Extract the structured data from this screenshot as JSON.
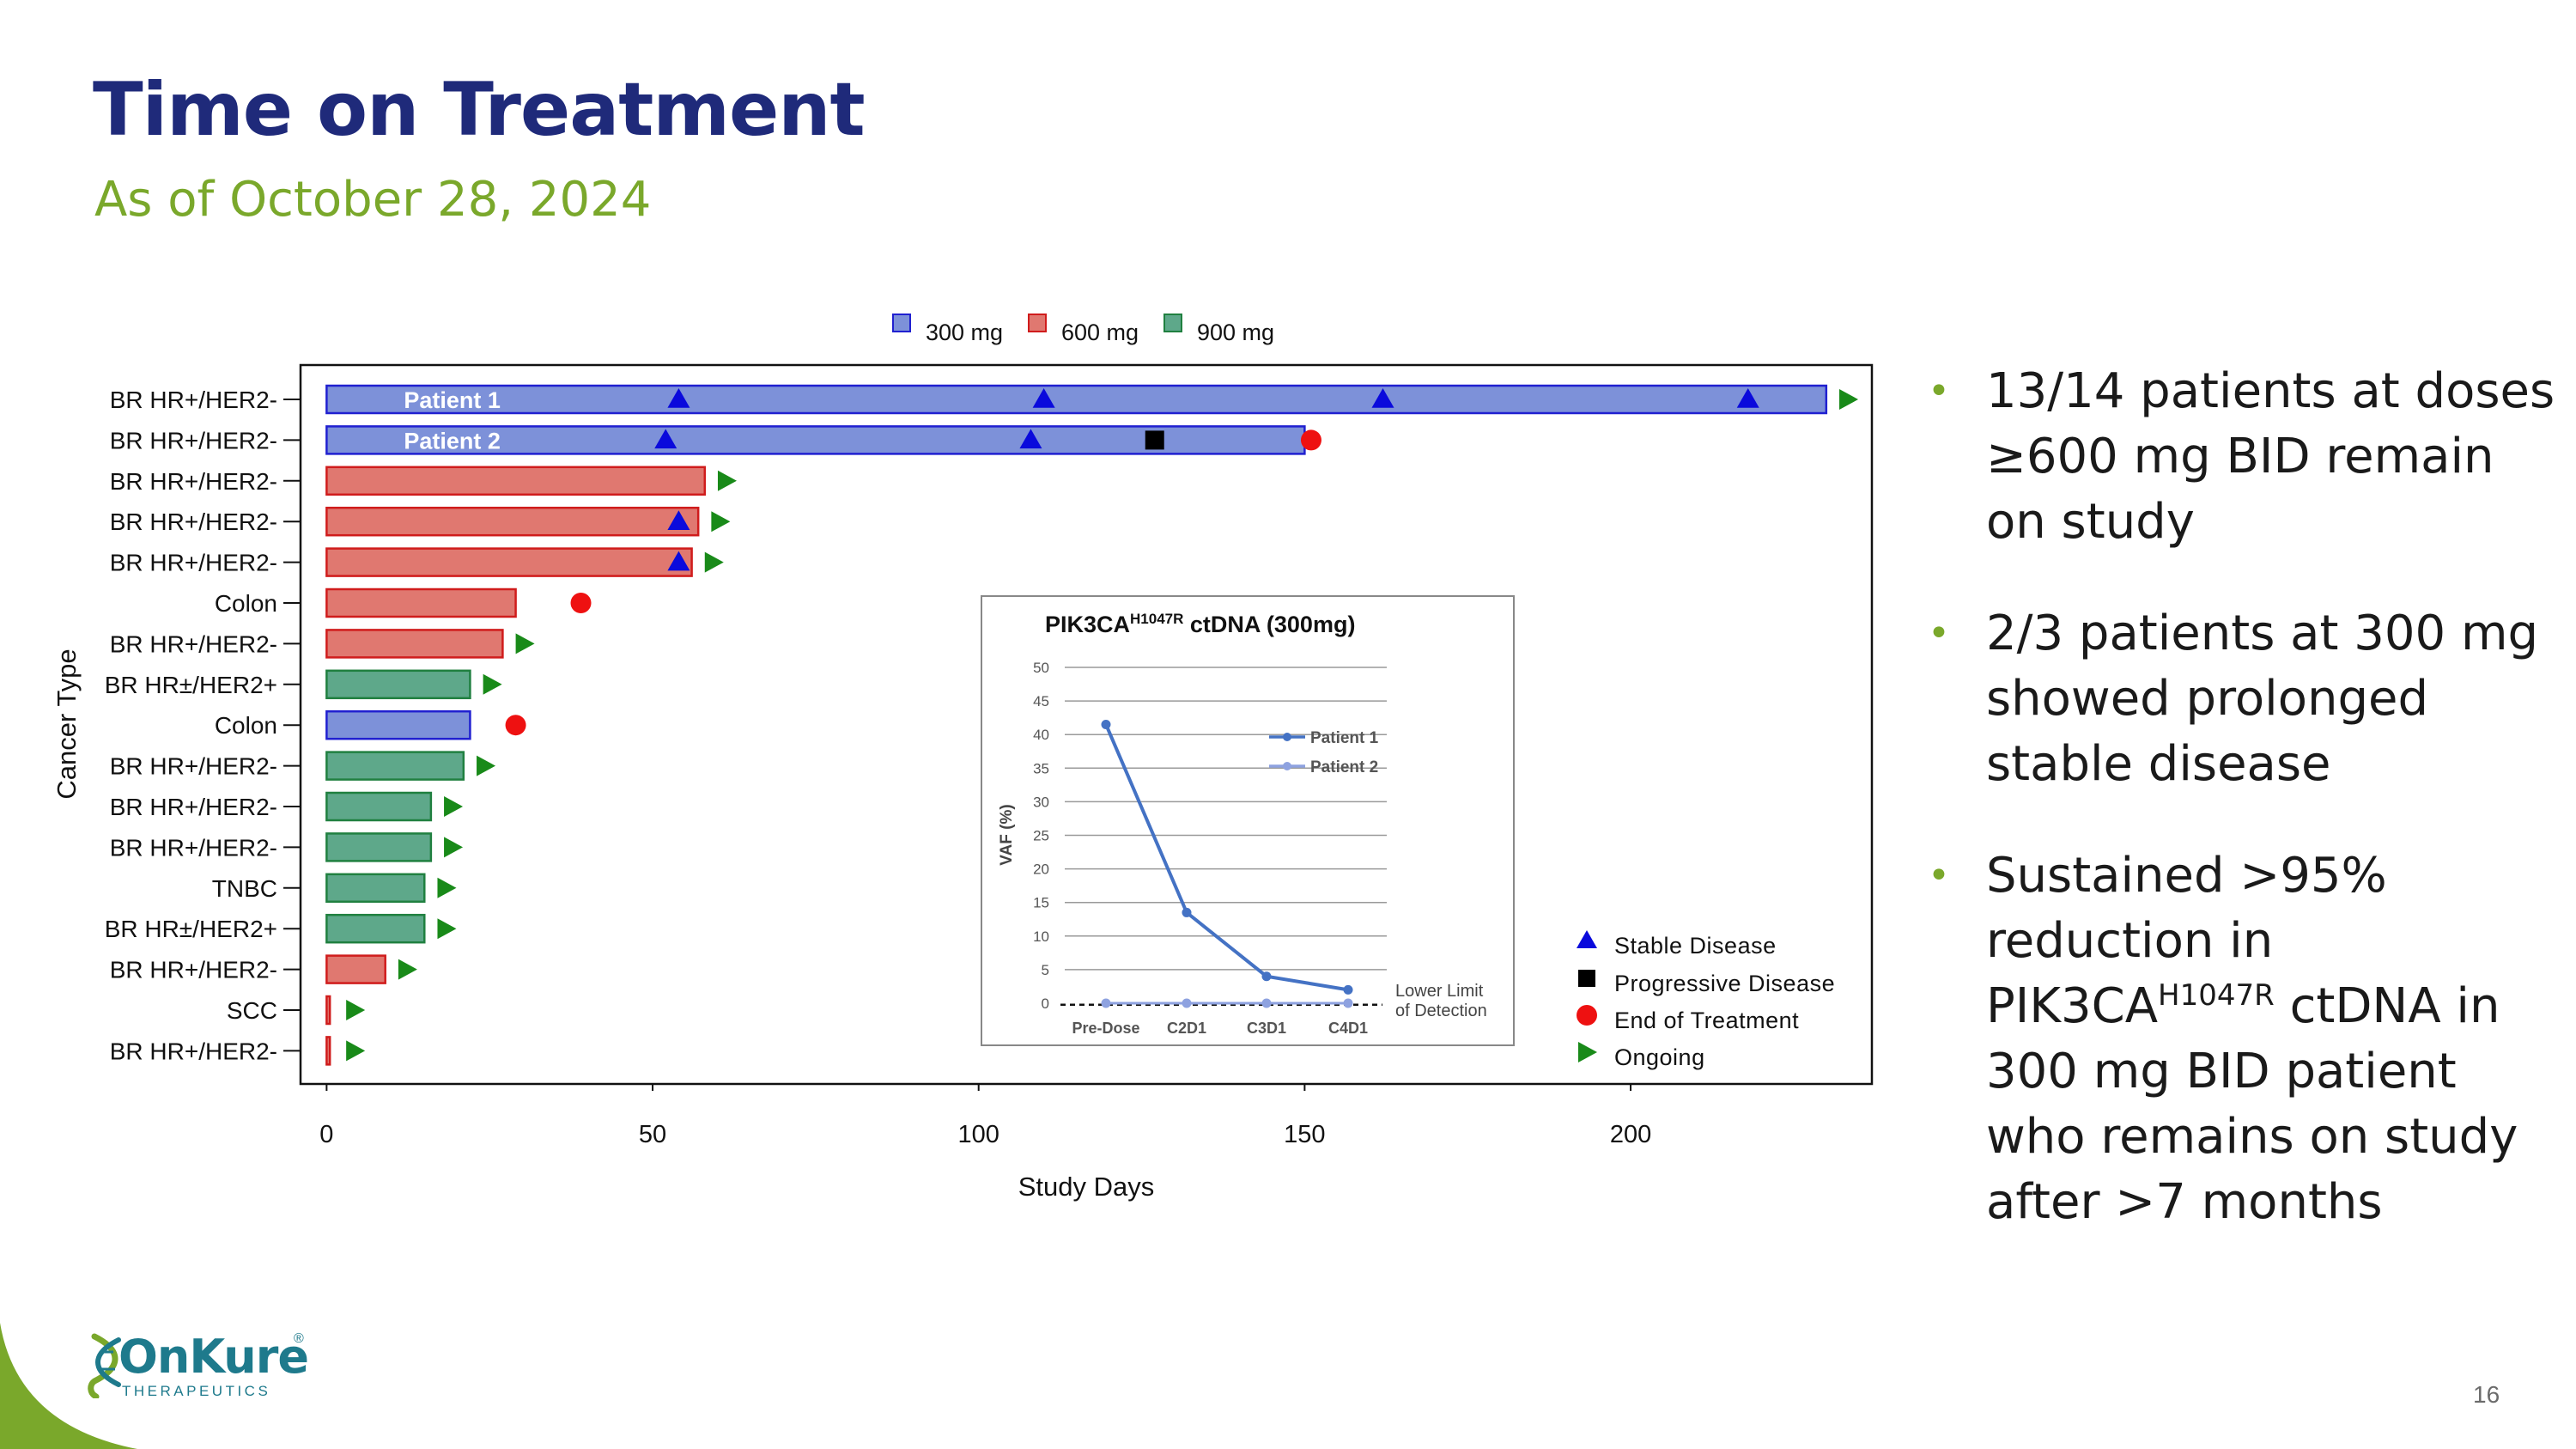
{
  "slide": {
    "title": "Time on Treatment",
    "subtitle": "As of October 28, 2024",
    "page_number": "16"
  },
  "bullets": [
    {
      "parts": [
        "13/14 patients at doses ≥600 mg BID remain on study"
      ]
    },
    {
      "parts": [
        "2/3 patients at 300 mg showed prolonged stable disease"
      ]
    },
    {
      "parts": [
        "Sustained >95% reduction in PIK3CA",
        "H1047R",
        " ctDNA in 300 mg BID patient who remains on study after >7 months"
      ]
    }
  ],
  "logo": {
    "name": "OnKure",
    "sub": "THERAPEUTICS",
    "reg": "®"
  },
  "colors": {
    "dose_300": "#7d91d9",
    "dose_300_edge": "#2020d0",
    "dose_600": "#e07870",
    "dose_600_edge": "#d01c1c",
    "dose_900": "#5ea88a",
    "dose_900_edge": "#208040",
    "stable": "#0a0adc",
    "progressive": "#000000",
    "eot": "#ee1111",
    "ongoing": "#198a19",
    "title": "#1f2a7a",
    "accent": "#7aa82b"
  },
  "chart_data": [
    {
      "type": "bar",
      "orientation": "horizontal",
      "xlabel": "Study Days",
      "ylabel": "Cancer Type",
      "xlim": [
        -4,
        237
      ],
      "xticks": [
        0,
        50,
        100,
        150,
        200
      ],
      "legend": {
        "position": "top",
        "entries": [
          {
            "label": "300 mg",
            "dose": "300"
          },
          {
            "label": "600 mg",
            "dose": "600"
          },
          {
            "label": "900 mg",
            "dose": "900"
          }
        ]
      },
      "marker_legend": {
        "position": "bottom-right",
        "entries": [
          {
            "label": "Stable Disease",
            "marker": "triangle"
          },
          {
            "label": "Progressive Disease",
            "marker": "square"
          },
          {
            "label": "End of Treatment",
            "marker": "circle"
          },
          {
            "label": "Ongoing",
            "marker": "arrow"
          }
        ]
      },
      "patients": [
        {
          "category": "BR HR+/HER2-",
          "label": "Patient 1",
          "dose": "300",
          "days": 230,
          "stable": [
            54,
            110,
            162,
            218
          ],
          "ongoing": 232
        },
        {
          "category": "BR HR+/HER2-",
          "label": "Patient 2",
          "dose": "300",
          "days": 150,
          "stable": [
            52,
            108
          ],
          "progressive": 127,
          "eot": 151
        },
        {
          "category": "BR HR+/HER2-",
          "dose": "600",
          "days": 58,
          "ongoing": 60
        },
        {
          "category": "BR HR+/HER2-",
          "dose": "600",
          "days": 57,
          "stable": [
            54
          ],
          "ongoing": 59
        },
        {
          "category": "BR HR+/HER2-",
          "dose": "600",
          "days": 56,
          "stable": [
            54
          ],
          "ongoing": 58
        },
        {
          "category": "Colon",
          "dose": "600",
          "days": 29,
          "eot": 39
        },
        {
          "category": "BR HR+/HER2-",
          "dose": "600",
          "days": 27,
          "ongoing": 29
        },
        {
          "category": "BR HR±/HER2+",
          "dose": "900",
          "days": 22,
          "ongoing": 24
        },
        {
          "category": "Colon",
          "dose": "300",
          "days": 22,
          "eot": 29
        },
        {
          "category": "BR HR+/HER2-",
          "dose": "900",
          "days": 21,
          "ongoing": 23
        },
        {
          "category": "BR HR+/HER2-",
          "dose": "900",
          "days": 16,
          "ongoing": 18
        },
        {
          "category": "BR HR+/HER2-",
          "dose": "900",
          "days": 16,
          "ongoing": 18
        },
        {
          "category": "TNBC",
          "dose": "900",
          "days": 15,
          "ongoing": 17
        },
        {
          "category": "BR HR±/HER2+",
          "dose": "900",
          "days": 15,
          "ongoing": 17
        },
        {
          "category": "BR HR+/HER2-",
          "dose": "600",
          "days": 9,
          "ongoing": 11
        },
        {
          "category": "SCC",
          "dose": "600",
          "days": 0.5,
          "ongoing": 3
        },
        {
          "category": "BR HR+/HER2-",
          "dose": "600",
          "days": 0.5,
          "ongoing": 3
        }
      ]
    },
    {
      "type": "line",
      "title_main": "PIK3CA",
      "title_sup": "H1047R",
      "title_rest": " ctDNA (300mg)",
      "ylabel": "VAF (%)",
      "categories": [
        "Pre-Dose",
        "C2D1",
        "C3D1",
        "C4D1"
      ],
      "ylim": [
        0,
        50
      ],
      "yticks": [
        0,
        5,
        10,
        15,
        20,
        25,
        30,
        35,
        40,
        45,
        50
      ],
      "series": [
        {
          "name": "Patient 1",
          "values": [
            41.5,
            13.5,
            4,
            2
          ],
          "color": "#4472c4"
        },
        {
          "name": "Patient 2",
          "values": [
            0.3,
            0.3,
            0.3,
            0.3
          ],
          "color": "#8ea2e0"
        }
      ],
      "reference_line": {
        "label_1": "Lower  Limit",
        "label_2": "of Detection",
        "value": 0.8
      }
    }
  ]
}
